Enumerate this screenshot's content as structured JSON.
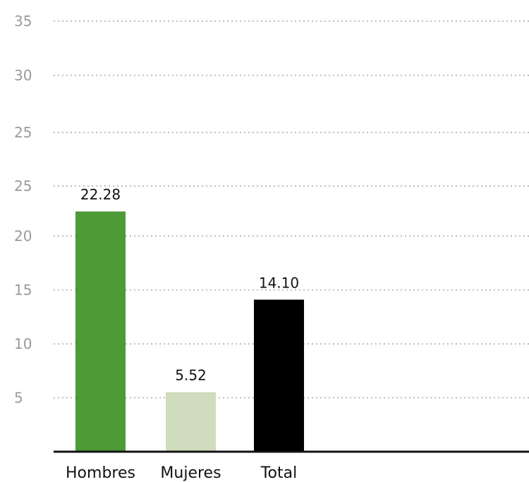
{
  "chart_data": {
    "type": "bar",
    "categories": [
      "Hombres",
      "Mujeres",
      "Total"
    ],
    "values": [
      22.28,
      5.52,
      14.1
    ],
    "value_labels": [
      "22.28",
      "5.52",
      "14.10"
    ],
    "colors": [
      "#4e9a36",
      "#cfdcbd",
      "#000000"
    ],
    "title": "",
    "xlabel": "",
    "ylabel": "",
    "ylim": [
      0,
      35
    ],
    "y_ticks": [
      {
        "value": 5,
        "label": "5"
      },
      {
        "value": 10,
        "label": "10"
      },
      {
        "value": 15,
        "label": "15"
      },
      {
        "value": 20,
        "label": "20"
      },
      {
        "value": 25,
        "label": "25"
      },
      {
        "value": 30,
        "label": "30"
      },
      {
        "value": 35,
        "label": "35"
      }
    ],
    "extra_tick_labels": [
      "25"
    ],
    "grid": true,
    "grid_style": "dotted"
  }
}
